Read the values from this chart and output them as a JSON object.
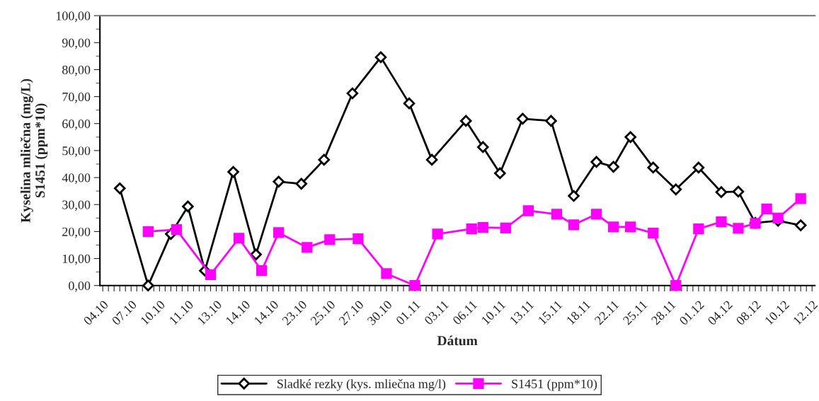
{
  "chart_data": {
    "type": "line",
    "xlabel": "Dátum",
    "ylabel": "Kyselina mliečna (mg/L)\nS1451 (ppm*10)",
    "categories": [
      "04.10",
      null,
      null,
      null,
      null,
      "07.10",
      null,
      null,
      null,
      null,
      "10.10",
      null,
      null,
      null,
      null,
      "11.10",
      null,
      null,
      null,
      null,
      "13.10",
      null,
      null,
      null,
      null,
      "14.10",
      null,
      null,
      null,
      null,
      "14.10",
      null,
      null,
      null,
      null,
      "23.10",
      null,
      null,
      null,
      null,
      "25.10",
      null,
      null,
      null,
      null,
      "27.10",
      null,
      null,
      null,
      null,
      "30.10",
      null,
      null,
      null,
      null,
      "01.11",
      null,
      null,
      null,
      null,
      "03.11",
      null,
      null,
      null,
      null,
      "06.11",
      null,
      null,
      null,
      null,
      "10.11",
      null,
      null,
      null,
      null,
      "13.11",
      null,
      null,
      null,
      null,
      "15.11",
      null,
      null,
      null,
      null,
      "18.11",
      null,
      null,
      null,
      null,
      "22.11",
      null,
      null,
      null,
      null,
      "25.11",
      null,
      null,
      null,
      null,
      "28.11",
      null,
      null,
      null,
      null,
      "01.12",
      null,
      null,
      null,
      null,
      "04.12",
      null,
      null,
      null,
      null,
      "08.12",
      null,
      null,
      null,
      null,
      "10.12",
      null,
      null,
      null,
      null,
      "12.12"
    ],
    "series": [
      {
        "name": "Sladké rezky (kys. mliečna mg/l)",
        "color": "#000000",
        "marker": "diamond",
        "values": [
          null,
          null,
          null,
          36,
          null,
          null,
          null,
          null,
          0,
          null,
          null,
          null,
          19.1,
          null,
          null,
          29.3,
          null,
          null,
          5.5,
          null,
          null,
          null,
          null,
          42.1,
          null,
          null,
          null,
          11.5,
          null,
          null,
          null,
          38.5,
          null,
          null,
          null,
          37.7,
          null,
          null,
          null,
          46.6,
          null,
          null,
          null,
          null,
          71.2,
          null,
          null,
          null,
          null,
          84.6,
          null,
          null,
          null,
          null,
          67.5,
          null,
          null,
          null,
          46.6,
          null,
          null,
          null,
          null,
          null,
          61,
          null,
          null,
          51.3,
          null,
          null,
          41.6,
          null,
          null,
          null,
          61.8,
          null,
          null,
          null,
          null,
          61,
          null,
          null,
          null,
          33.2,
          null,
          null,
          null,
          45.8,
          null,
          null,
          44,
          null,
          null,
          55,
          null,
          null,
          null,
          43.7,
          null,
          null,
          null,
          35.6,
          null,
          null,
          null,
          43.7,
          null,
          null,
          null,
          34.6,
          null,
          null,
          34.8,
          null,
          null,
          23.2,
          null,
          null,
          null,
          24,
          null,
          null,
          null,
          22.3,
          null,
          null
        ]
      },
      {
        "name": "S1451 (ppm*10)",
        "color": "#ff00ff",
        "marker": "square",
        "values": [
          null,
          null,
          null,
          null,
          null,
          null,
          null,
          null,
          20,
          null,
          null,
          null,
          null,
          20.7,
          null,
          null,
          null,
          null,
          null,
          4,
          null,
          null,
          null,
          null,
          17.5,
          null,
          null,
          null,
          5.5,
          null,
          null,
          19.6,
          null,
          null,
          null,
          null,
          14.1,
          null,
          null,
          null,
          17,
          null,
          null,
          null,
          null,
          17.3,
          null,
          null,
          null,
          null,
          4.4,
          null,
          null,
          null,
          null,
          0,
          null,
          null,
          null,
          19.1,
          null,
          null,
          null,
          null,
          null,
          21,
          null,
          21.5,
          null,
          null,
          null,
          21.3,
          null,
          null,
          null,
          27.7,
          null,
          null,
          null,
          null,
          26.4,
          null,
          null,
          22.5,
          null,
          null,
          null,
          26.4,
          null,
          null,
          21.7,
          null,
          null,
          21.7,
          null,
          null,
          null,
          19.4,
          null,
          null,
          null,
          0,
          null,
          null,
          null,
          21,
          null,
          null,
          null,
          23.6,
          null,
          null,
          21.2,
          null,
          null,
          23,
          null,
          28.4,
          null,
          25,
          null,
          null,
          null,
          32.2,
          null,
          null
        ]
      }
    ],
    "ylim": [
      0,
      100
    ],
    "yticks": [
      {
        "value": 0,
        "label": "0,00"
      },
      {
        "value": 10,
        "label": "10,00"
      },
      {
        "value": 20,
        "label": "20,00"
      },
      {
        "value": 30,
        "label": "30,00"
      },
      {
        "value": 40,
        "label": "40,00"
      },
      {
        "value": 50,
        "label": "50,00"
      },
      {
        "value": 60,
        "label": "60,00"
      },
      {
        "value": 70,
        "label": "70,00"
      },
      {
        "value": 80,
        "label": "80,00"
      },
      {
        "value": 90,
        "label": "90,00"
      },
      {
        "value": 100,
        "label": "100,00"
      }
    ],
    "grid": false,
    "legend": "bottom",
    "line_style": "solid"
  }
}
